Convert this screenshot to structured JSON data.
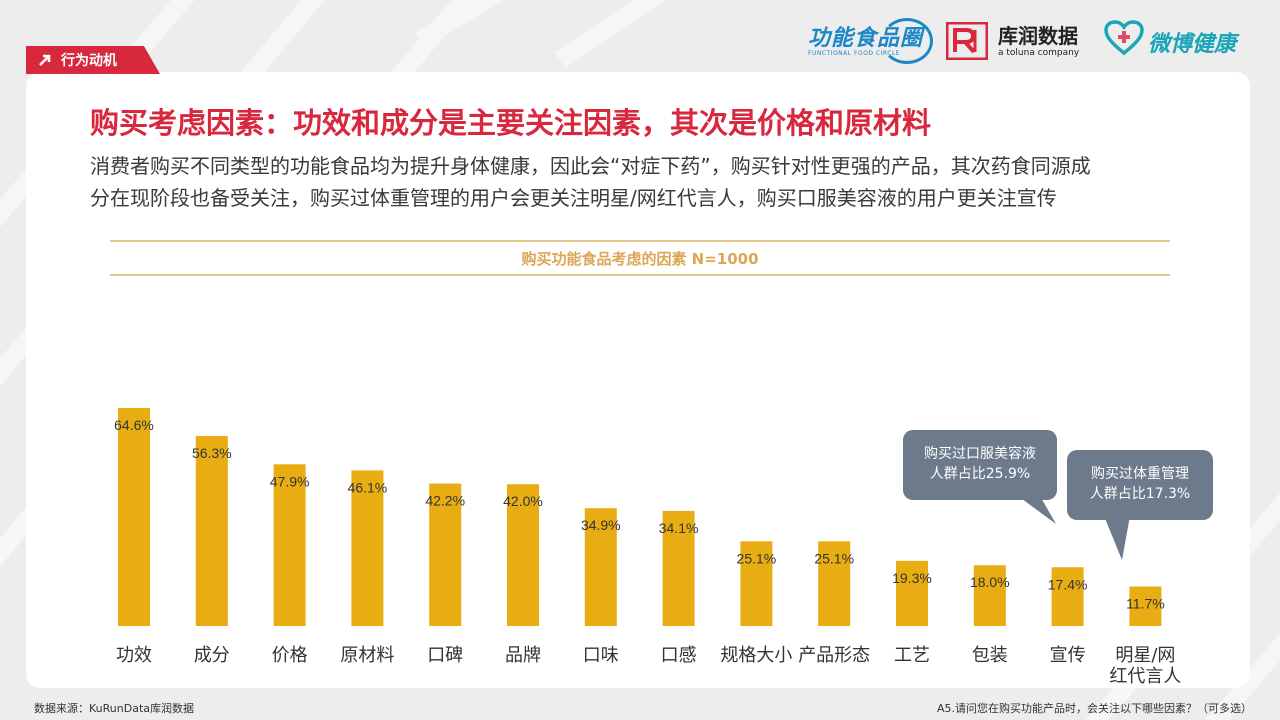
{
  "section_tag": "行为动机",
  "logos": {
    "ffc_name": "功能食品圈",
    "ffc_sub": "FUNCTIONAL FOOD CIRCLE",
    "kurun_name": "库润数据",
    "kurun_tagline": "a toluna company",
    "weibo_name": "微博健康"
  },
  "title": "购买考虑因素：功效和成分是主要关注因素，其次是价格和原材料",
  "description": [
    "消费者购买不同类型的功能食品均为提升身体健康，因此会“对症下药”，购买针对性更强的产品，其次药食同源成",
    "分在现阶段也备受关注，购买过体重管理的用户会更关注明星/网红代言人，购买口服美容液的用户更关注宣传"
  ],
  "callouts": [
    {
      "line1": "购买过口服美容液",
      "line2": "人群占比25.9%"
    },
    {
      "line1": "购买过体重管理",
      "line2": "人群占比17.3%"
    }
  ],
  "footer": {
    "source": "数据来源：KuRunData库润数据",
    "question": "A5.请问您在购买功能产品时，会关注以下哪些因素？（可多选）"
  },
  "colors": {
    "accent_red": "#d7283d",
    "bar": "#e8ad12",
    "callout_bg": "#6c7a8c",
    "chart_title": "#dba756"
  },
  "chart_data": {
    "type": "bar",
    "title": "购买功能食品考虑的因素 N=1000",
    "categories": [
      "功效",
      "成分",
      "价格",
      "原材料",
      "口碑",
      "品牌",
      "口味",
      "口感",
      "规格大小",
      "产品形态",
      "工艺",
      "包装",
      "宣传",
      "明星/网红代言人"
    ],
    "category_lines": [
      [
        "功效"
      ],
      [
        "成分"
      ],
      [
        "价格"
      ],
      [
        "原材料"
      ],
      [
        "口碑"
      ],
      [
        "品牌"
      ],
      [
        "口味"
      ],
      [
        "口感"
      ],
      [
        "规格大小"
      ],
      [
        "产品形态"
      ],
      [
        "工艺"
      ],
      [
        "包装"
      ],
      [
        "宣传"
      ],
      [
        "明星/网",
        "红代言人"
      ]
    ],
    "values": [
      64.6,
      56.3,
      47.9,
      46.1,
      42.2,
      42.0,
      34.9,
      34.1,
      25.1,
      25.1,
      19.3,
      18.0,
      17.4,
      11.7
    ],
    "value_labels": [
      "64.6%",
      "56.3%",
      "47.9%",
      "46.1%",
      "42.2%",
      "42.0%",
      "34.9%",
      "34.1%",
      "25.1%",
      "25.1%",
      "19.3%",
      "18.0%",
      "17.4%",
      "11.7%"
    ],
    "unit": "%",
    "ylim": [
      0,
      100
    ],
    "grid": false,
    "legend": "none"
  }
}
